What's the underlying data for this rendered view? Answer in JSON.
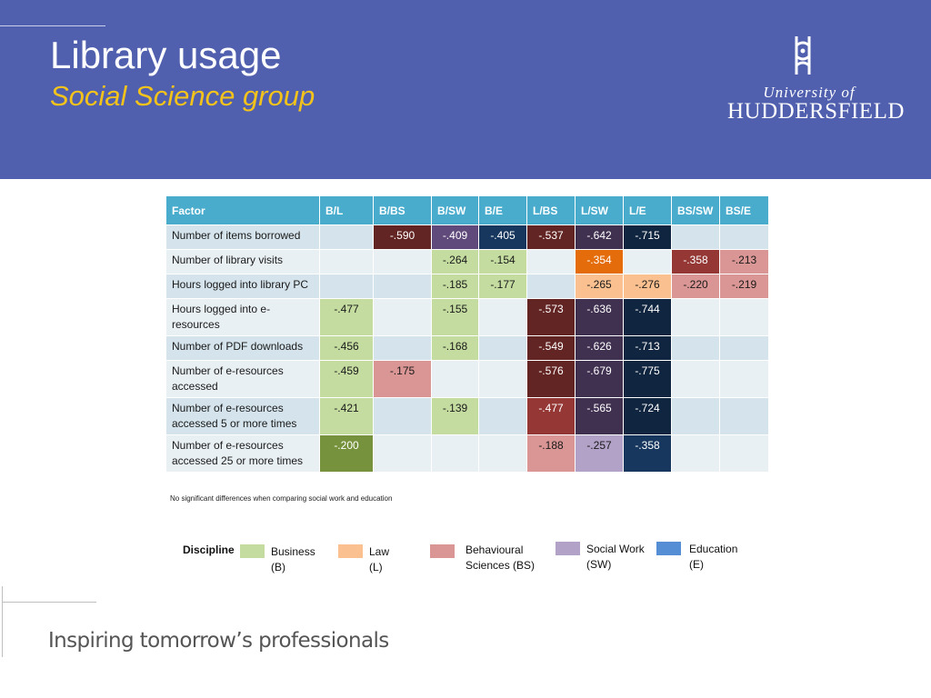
{
  "slide": {
    "title": "Library usage",
    "subtitle": "Social Science group",
    "logo": {
      "line1": "University of",
      "line2": "HUDDERSFIELD"
    },
    "tagline": "Inspiring tomorrow’s professionals"
  },
  "table": {
    "headers": [
      "Factor",
      "B/L",
      "B/BS",
      "B/SW",
      "B/E",
      "L/BS",
      "L/SW",
      "L/E",
      "BS/SW",
      "BS/E"
    ],
    "rows": [
      {
        "factor": "Number of items borrowed",
        "cells": [
          "",
          "-.590",
          "-.409",
          "-.405",
          "-.537",
          "-.642",
          "-.715",
          "",
          ""
        ]
      },
      {
        "factor": "Number of library visits",
        "cells": [
          "",
          "",
          "-.264",
          "-.154",
          "",
          "-.354",
          "",
          "-.358",
          "-.213"
        ]
      },
      {
        "factor": "Hours logged into library PC",
        "cells": [
          "",
          "",
          "-.185",
          "-.177",
          "",
          "-.265",
          "-.276",
          "-.220",
          "-.219"
        ]
      },
      {
        "factor": "Hours logged into e-resources",
        "cells": [
          "-.477",
          "",
          "-.155",
          "",
          "-.573",
          "-.636",
          "-.744",
          "",
          ""
        ]
      },
      {
        "factor": "Number of PDF downloads",
        "cells": [
          "-.456",
          "",
          "-.168",
          "",
          "-.549",
          "-.626",
          "-.713",
          "",
          ""
        ]
      },
      {
        "factor": "Number of e-resources accessed",
        "cells": [
          "-.459",
          "-.175",
          "",
          "",
          "-.576",
          "-.679",
          "-.775",
          "",
          ""
        ]
      },
      {
        "factor": "Number of e-resources accessed 5 or more times",
        "cells": [
          "-.421",
          "",
          "-.139",
          "",
          "-.477",
          "-.565",
          "-.724",
          "",
          ""
        ]
      },
      {
        "factor": "Number of e-resources accessed 25 or more times",
        "cells": [
          "-.200",
          "",
          "",
          "",
          "-.188",
          "-.257",
          "-.358",
          "",
          ""
        ]
      }
    ]
  },
  "note": "No significant differences when comparing social work and education",
  "legend": {
    "title": "Discipline",
    "items": [
      {
        "label": "Business (B)",
        "color": "#c4dca0"
      },
      {
        "label": "Law (L)",
        "color": "#fac08f"
      },
      {
        "label": "Behavioural Sciences (BS)",
        "color": "#d99694"
      },
      {
        "label": "Social Work (SW)",
        "color": "#b3a2c7"
      },
      {
        "label": "Education (E)",
        "color": "#558ed5"
      }
    ]
  },
  "colors": {
    "header_bg": "#5060ae",
    "subtitle": "#f3c31c",
    "table_header": "#4aaccd"
  }
}
